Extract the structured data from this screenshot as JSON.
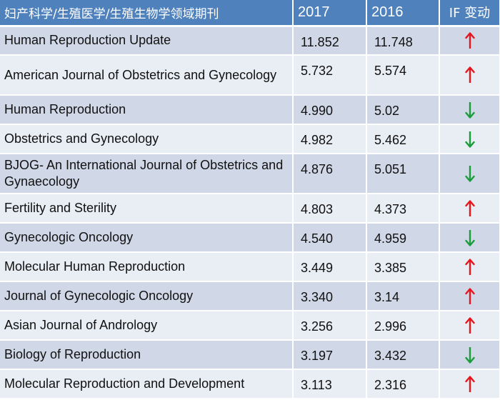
{
  "table": {
    "headers": {
      "name": "妇产科学/生殖医学/生殖生物学领域期刊",
      "y2017": "2017",
      "y2016": "2016",
      "change": "IF 变动"
    },
    "rows": [
      {
        "name": "Human Reproduction Update",
        "y2017": "11.852",
        "y2016": "11.748",
        "direction": "up"
      },
      {
        "name": "American Journal of Obstetrics and Gynecology",
        "y2017": "5.732",
        "y2016": "5.574",
        "direction": "up"
      },
      {
        "name": "Human Reproduction",
        "y2017": "4.990",
        "y2016": "5.02",
        "direction": "down"
      },
      {
        "name": "Obstetrics and Gynecology",
        "y2017": "4.982",
        "y2016": "5.462",
        "direction": "down"
      },
      {
        "name": "BJOG- An International Journal of Obstetrics and Gynaecology",
        "y2017": "4.876",
        "y2016": "5.051",
        "direction": "down"
      },
      {
        "name": "Fertility and Sterility",
        "y2017": "4.803",
        "y2016": "4.373",
        "direction": "up"
      },
      {
        "name": "Gynecologic Oncology",
        "y2017": "4.540",
        "y2016": "4.959",
        "direction": "down"
      },
      {
        "name": "Molecular Human Reproduction",
        "y2017": "3.449",
        "y2016": "3.385",
        "direction": "up"
      },
      {
        "name": "Journal of Gynecologic Oncology",
        "y2017": "3.340",
        "y2016": "3.14",
        "direction": "up"
      },
      {
        "name": "Asian Journal of Andrology",
        "y2017": "3.256",
        "y2016": "2.996",
        "direction": "up"
      },
      {
        "name": "Biology of Reproduction",
        "y2017": "3.197",
        "y2016": "3.432",
        "direction": "down"
      },
      {
        "name": "Molecular Reproduction and Development",
        "y2017": "3.113",
        "y2016": "2.316",
        "direction": "up"
      }
    ]
  },
  "colors": {
    "header_bg": "#4f81bd",
    "row_odd": "#d0d8e8",
    "row_even": "#e9edf4",
    "arrow_up": "#e8141c",
    "arrow_down": "#1a9c3a"
  },
  "icons": {
    "up": "arrow-up-icon",
    "down": "arrow-down-icon"
  }
}
